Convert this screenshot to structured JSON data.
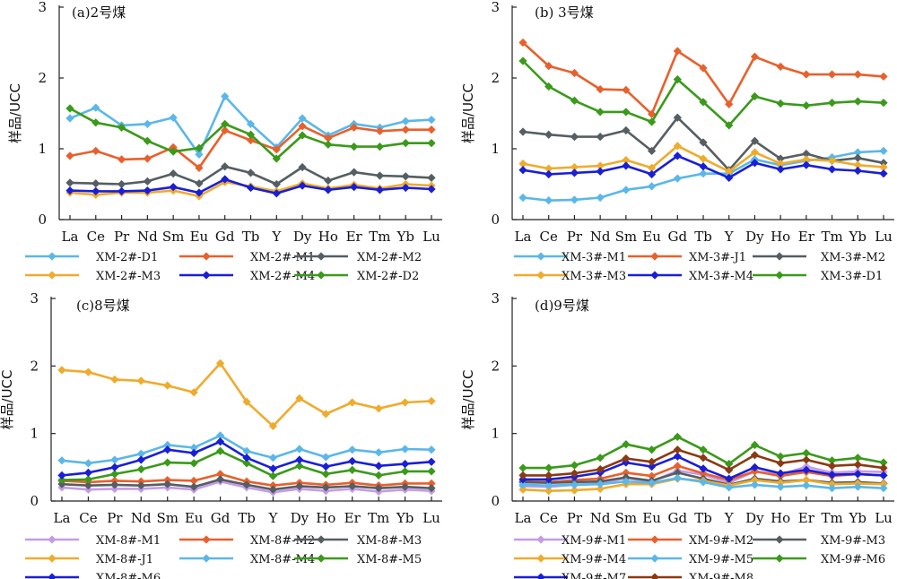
{
  "chart_data": [
    {
      "type": "line",
      "title": "(a)2号煤",
      "ylabel": "样品/UCC",
      "ylim": [
        0,
        3
      ],
      "yticks": [
        0,
        1,
        2,
        3
      ],
      "categories": [
        "La",
        "Ce",
        "Pr",
        "Nd",
        "Sm",
        "Eu",
        "Gd",
        "Tb",
        "Y",
        "Dy",
        "Ho",
        "Er",
        "Tm",
        "Yb",
        "Lu"
      ],
      "series": [
        {
          "name": "XM-2#-D1",
          "color": "#5bb7e8",
          "values": [
            1.43,
            1.58,
            1.33,
            1.35,
            1.44,
            0.92,
            1.74,
            1.35,
            1.02,
            1.43,
            1.19,
            1.35,
            1.3,
            1.39,
            1.41
          ]
        },
        {
          "name": "XM-2#-M1",
          "color": "#e8602c",
          "values": [
            0.9,
            0.97,
            0.85,
            0.86,
            1.02,
            0.73,
            1.26,
            1.12,
            0.99,
            1.32,
            1.15,
            1.3,
            1.25,
            1.27,
            1.27
          ]
        },
        {
          "name": "XM-2#-M2",
          "color": "#555e62",
          "values": [
            0.52,
            0.51,
            0.5,
            0.54,
            0.65,
            0.51,
            0.75,
            0.66,
            0.5,
            0.74,
            0.55,
            0.67,
            0.62,
            0.61,
            0.59
          ]
        },
        {
          "name": "XM-2#-M3",
          "color": "#efab2c",
          "values": [
            0.38,
            0.35,
            0.38,
            0.38,
            0.41,
            0.33,
            0.53,
            0.47,
            0.4,
            0.51,
            0.44,
            0.49,
            0.44,
            0.5,
            0.48
          ]
        },
        {
          "name": "XM-2#-M4",
          "color": "#1a1fd6",
          "values": [
            0.41,
            0.4,
            0.4,
            0.41,
            0.46,
            0.38,
            0.57,
            0.45,
            0.37,
            0.48,
            0.42,
            0.46,
            0.42,
            0.45,
            0.43
          ]
        },
        {
          "name": "XM-2#-D2",
          "color": "#3a9a1a",
          "values": [
            1.57,
            1.37,
            1.3,
            1.11,
            0.96,
            1.01,
            1.35,
            1.2,
            0.86,
            1.19,
            1.06,
            1.03,
            1.03,
            1.08,
            1.08
          ]
        }
      ]
    },
    {
      "type": "line",
      "title": "(b) 3号煤",
      "ylabel": "样品/UCC",
      "ylim": [
        0,
        3
      ],
      "yticks": [
        0,
        1,
        2,
        3
      ],
      "categories": [
        "La",
        "Ce",
        "Pr",
        "Nd",
        "Sm",
        "Eu",
        "Gd",
        "Tb",
        "Y",
        "Dy",
        "Ho",
        "Er",
        "Tm",
        "Yb",
        "Lu"
      ],
      "series": [
        {
          "name": "XM-3#-M1",
          "color": "#5bb7e8",
          "values": [
            0.31,
            0.27,
            0.28,
            0.31,
            0.42,
            0.47,
            0.58,
            0.65,
            0.65,
            0.85,
            0.77,
            0.83,
            0.88,
            0.95,
            0.97
          ]
        },
        {
          "name": "XM-3#-J1",
          "color": "#e8602c",
          "values": [
            2.5,
            2.17,
            2.07,
            1.84,
            1.83,
            1.49,
            2.38,
            2.14,
            1.63,
            2.3,
            2.16,
            2.05,
            2.05,
            2.05,
            2.02
          ]
        },
        {
          "name": "XM-3#-M2",
          "color": "#555e62",
          "values": [
            1.24,
            1.2,
            1.17,
            1.17,
            1.26,
            0.97,
            1.44,
            1.09,
            0.7,
            1.11,
            0.86,
            0.93,
            0.83,
            0.87,
            0.8
          ]
        },
        {
          "name": "XM-3#-M3",
          "color": "#efab2c",
          "values": [
            0.79,
            0.72,
            0.74,
            0.76,
            0.84,
            0.73,
            1.04,
            0.86,
            0.68,
            0.95,
            0.79,
            0.85,
            0.83,
            0.77,
            0.74
          ]
        },
        {
          "name": "XM-3#-M4",
          "color": "#1a1fd6",
          "values": [
            0.7,
            0.64,
            0.66,
            0.68,
            0.76,
            0.64,
            0.9,
            0.75,
            0.59,
            0.8,
            0.71,
            0.77,
            0.71,
            0.69,
            0.65
          ]
        },
        {
          "name": "XM-3#-D1",
          "color": "#3a9a1a",
          "values": [
            2.24,
            1.88,
            1.68,
            1.52,
            1.52,
            1.38,
            1.98,
            1.66,
            1.33,
            1.74,
            1.64,
            1.61,
            1.65,
            1.67,
            1.65
          ]
        }
      ]
    },
    {
      "type": "line",
      "title": "(c)8号煤",
      "ylabel": "样品/UCC",
      "ylim": [
        0,
        3
      ],
      "yticks": [
        0,
        1,
        2,
        3
      ],
      "categories": [
        "La",
        "Ce",
        "Pr",
        "Nd",
        "Sm",
        "Eu",
        "Gd",
        "Tb",
        "Y",
        "Dy",
        "Ho",
        "Er",
        "Tm",
        "Yb",
        "Lu"
      ],
      "series": [
        {
          "name": "XM-8#-M1",
          "color": "#c59be8",
          "values": [
            0.2,
            0.17,
            0.18,
            0.18,
            0.2,
            0.17,
            0.29,
            0.2,
            0.13,
            0.18,
            0.15,
            0.18,
            0.14,
            0.17,
            0.15
          ]
        },
        {
          "name": "XM-8#-M2",
          "color": "#e8602c",
          "values": [
            0.3,
            0.28,
            0.3,
            0.29,
            0.31,
            0.3,
            0.4,
            0.29,
            0.23,
            0.27,
            0.24,
            0.27,
            0.23,
            0.26,
            0.26
          ]
        },
        {
          "name": "XM-8#-M3",
          "color": "#555e62",
          "values": [
            0.25,
            0.23,
            0.24,
            0.23,
            0.25,
            0.21,
            0.32,
            0.24,
            0.17,
            0.22,
            0.2,
            0.22,
            0.19,
            0.21,
            0.19
          ]
        },
        {
          "name": "XM-8#-J1",
          "color": "#efab2c",
          "values": [
            1.94,
            1.91,
            1.8,
            1.78,
            1.71,
            1.61,
            2.04,
            1.47,
            1.11,
            1.52,
            1.29,
            1.46,
            1.37,
            1.46,
            1.48
          ]
        },
        {
          "name": "XM-8#-M4",
          "color": "#5bb7e8",
          "values": [
            0.6,
            0.56,
            0.61,
            0.7,
            0.83,
            0.79,
            0.97,
            0.74,
            0.64,
            0.77,
            0.65,
            0.76,
            0.72,
            0.77,
            0.76
          ]
        },
        {
          "name": "XM-8#-M5",
          "color": "#3a9a1a",
          "values": [
            0.31,
            0.32,
            0.4,
            0.47,
            0.57,
            0.56,
            0.74,
            0.56,
            0.37,
            0.52,
            0.4,
            0.46,
            0.38,
            0.44,
            0.44
          ]
        },
        {
          "name": "XM-8#-M6",
          "color": "#1a1fd6",
          "values": [
            0.38,
            0.42,
            0.5,
            0.61,
            0.76,
            0.71,
            0.88,
            0.64,
            0.48,
            0.61,
            0.51,
            0.59,
            0.52,
            0.55,
            0.58
          ]
        }
      ]
    },
    {
      "type": "line",
      "title": "(d)9号煤",
      "ylabel": "样品/UCC",
      "ylim": [
        0,
        3
      ],
      "yticks": [
        0,
        1,
        2,
        3
      ],
      "categories": [
        "La",
        "Ce",
        "Pr",
        "Nd",
        "Sm",
        "Eu",
        "Gd",
        "Tb",
        "Y",
        "Dy",
        "Ho",
        "Er",
        "Tm",
        "Yb",
        "Lu"
      ],
      "series": [
        {
          "name": "XM-9#-M1",
          "color": "#c59be8",
          "values": [
            0.22,
            0.21,
            0.24,
            0.26,
            0.34,
            0.29,
            0.45,
            0.39,
            0.27,
            0.44,
            0.39,
            0.51,
            0.42,
            0.44,
            0.43
          ]
        },
        {
          "name": "XM-9#-M2",
          "color": "#e8602c",
          "values": [
            0.29,
            0.28,
            0.31,
            0.33,
            0.42,
            0.37,
            0.52,
            0.41,
            0.31,
            0.44,
            0.37,
            0.43,
            0.37,
            0.4,
            0.38
          ]
        },
        {
          "name": "XM-9#-M3",
          "color": "#555e62",
          "values": [
            0.28,
            0.27,
            0.28,
            0.29,
            0.35,
            0.3,
            0.42,
            0.33,
            0.24,
            0.33,
            0.29,
            0.31,
            0.27,
            0.28,
            0.26
          ]
        },
        {
          "name": "XM-9#-M4",
          "color": "#efab2c",
          "values": [
            0.17,
            0.15,
            0.16,
            0.18,
            0.25,
            0.25,
            0.33,
            0.3,
            0.23,
            0.31,
            0.27,
            0.31,
            0.25,
            0.26,
            0.25
          ]
        },
        {
          "name": "XM-9#-M5",
          "color": "#5bb7e8",
          "values": [
            0.24,
            0.23,
            0.24,
            0.25,
            0.29,
            0.27,
            0.34,
            0.28,
            0.2,
            0.24,
            0.21,
            0.23,
            0.19,
            0.21,
            0.19
          ]
        },
        {
          "name": "XM-9#-M6",
          "color": "#3a9a1a",
          "values": [
            0.49,
            0.49,
            0.53,
            0.64,
            0.84,
            0.76,
            0.95,
            0.76,
            0.55,
            0.83,
            0.66,
            0.71,
            0.6,
            0.64,
            0.57
          ]
        },
        {
          "name": "XM-9#-M7",
          "color": "#1a1fd6",
          "values": [
            0.32,
            0.32,
            0.36,
            0.42,
            0.57,
            0.51,
            0.66,
            0.48,
            0.33,
            0.5,
            0.41,
            0.46,
            0.39,
            0.4,
            0.38
          ]
        },
        {
          "name": "XM-9#-M8",
          "color": "#8b3a14",
          "values": [
            0.38,
            0.38,
            0.41,
            0.47,
            0.63,
            0.58,
            0.76,
            0.64,
            0.46,
            0.68,
            0.56,
            0.61,
            0.52,
            0.54,
            0.49
          ]
        }
      ]
    }
  ]
}
